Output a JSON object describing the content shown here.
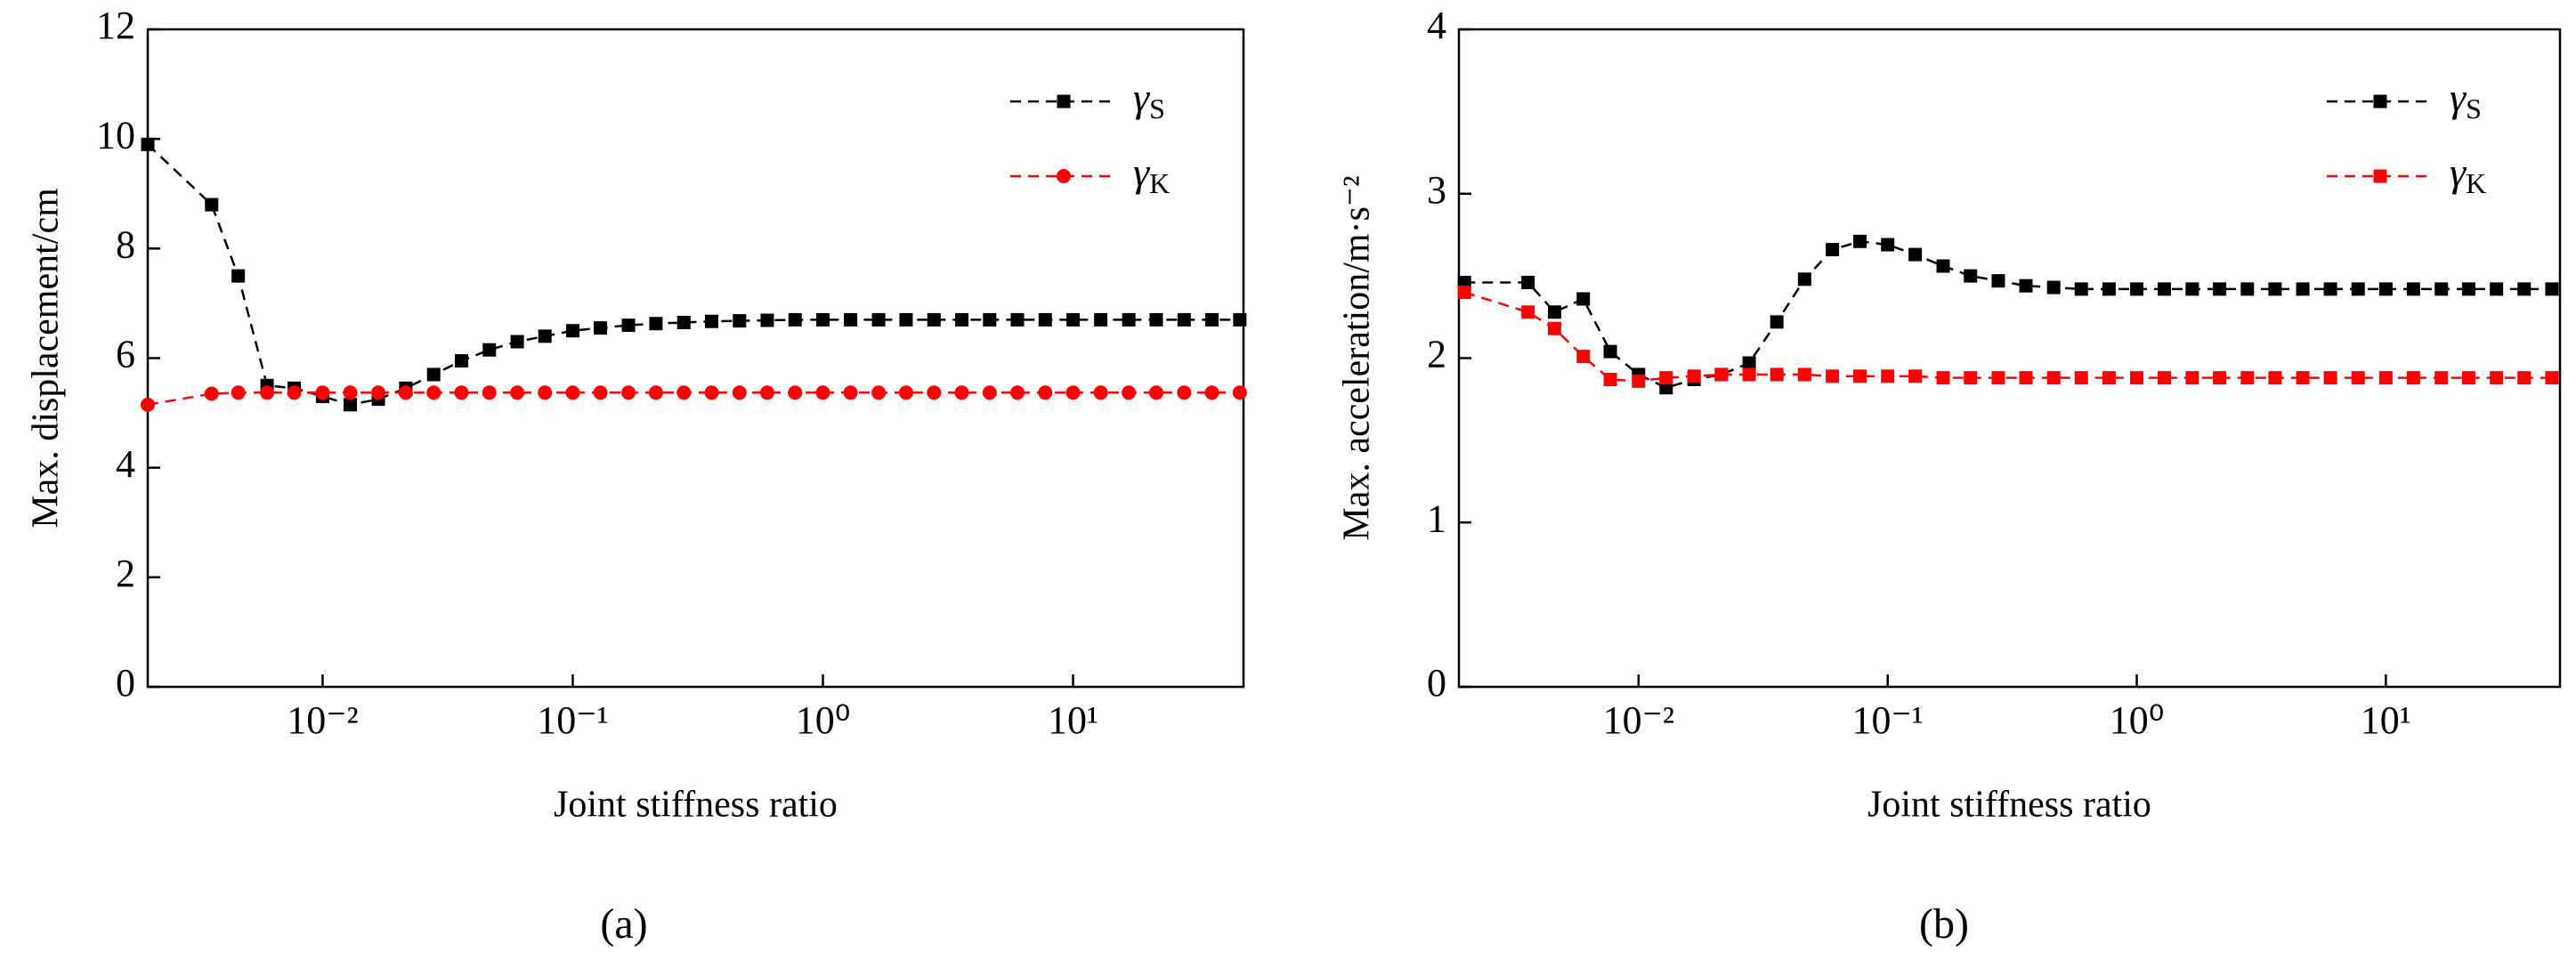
{
  "chart_data": [
    {
      "type": "line",
      "panel_label": "(a)",
      "xlabel": "Joint stiffness ratio",
      "ylabel": "Max. displacement/cm",
      "x": [
        0.002,
        0.0036,
        0.0046,
        0.006,
        0.0077,
        0.01,
        0.0129,
        0.0167,
        0.0215,
        0.0278,
        0.0359,
        0.0464,
        0.06,
        0.0774,
        0.1,
        0.129,
        0.167,
        0.215,
        0.278,
        0.359,
        0.464,
        0.599,
        0.774,
        1,
        1.29,
        1.67,
        2.15,
        2.78,
        3.59,
        4.64,
        5.99,
        7.74,
        10,
        12.9,
        16.7,
        21.5,
        27.8,
        35.9,
        46.4
      ],
      "xscale": "log",
      "xlim": [
        0.002,
        48
      ],
      "xticks": [
        {
          "value": 0.01,
          "label": "10⁻²"
        },
        {
          "value": 0.1,
          "label": "10⁻¹"
        },
        {
          "value": 1,
          "label": "10⁰"
        },
        {
          "value": 10,
          "label": "10¹"
        }
      ],
      "ylim": [
        0,
        12
      ],
      "yticks": [
        0,
        2,
        4,
        6,
        8,
        10,
        12
      ],
      "legend": "upper right",
      "series": [
        {
          "name": "γS",
          "color": "#000000",
          "marker": "square",
          "values": [
            9.9,
            8.8,
            7.5,
            5.5,
            5.45,
            5.3,
            5.15,
            5.25,
            5.45,
            5.7,
            5.95,
            6.15,
            6.3,
            6.4,
            6.5,
            6.55,
            6.6,
            6.63,
            6.65,
            6.67,
            6.68,
            6.69,
            6.7,
            6.7,
            6.7,
            6.7,
            6.7,
            6.7,
            6.7,
            6.7,
            6.7,
            6.7,
            6.7,
            6.7,
            6.7,
            6.7,
            6.7,
            6.7,
            6.7
          ]
        },
        {
          "name": "γK",
          "color": "#ff0000",
          "marker": "circle",
          "values": [
            5.15,
            5.35,
            5.37,
            5.37,
            5.37,
            5.37,
            5.37,
            5.37,
            5.37,
            5.37,
            5.37,
            5.37,
            5.37,
            5.37,
            5.37,
            5.37,
            5.37,
            5.37,
            5.37,
            5.37,
            5.37,
            5.37,
            5.37,
            5.37,
            5.37,
            5.37,
            5.37,
            5.37,
            5.37,
            5.37,
            5.37,
            5.37,
            5.37,
            5.37,
            5.37,
            5.37,
            5.37,
            5.37,
            5.37
          ]
        }
      ]
    },
    {
      "type": "line",
      "panel_label": "(b)",
      "xlabel": "Joint stiffness ratio",
      "ylabel": "Max. acceleration/m·s⁻²",
      "x": [
        0.002,
        0.0036,
        0.0046,
        0.006,
        0.0077,
        0.01,
        0.0129,
        0.0167,
        0.0215,
        0.0278,
        0.0359,
        0.0464,
        0.06,
        0.0774,
        0.1,
        0.129,
        0.167,
        0.215,
        0.278,
        0.359,
        0.464,
        0.599,
        0.774,
        1,
        1.29,
        1.67,
        2.15,
        2.78,
        3.59,
        4.64,
        5.99,
        7.74,
        10,
        12.9,
        16.7,
        21.5,
        27.8,
        35.9,
        46.4
      ],
      "xscale": "log",
      "xlim": [
        0.0019,
        50
      ],
      "xticks": [
        {
          "value": 0.01,
          "label": "10⁻²"
        },
        {
          "value": 0.1,
          "label": "10⁻¹"
        },
        {
          "value": 1,
          "label": "10⁰"
        },
        {
          "value": 10,
          "label": "10¹"
        }
      ],
      "ylim": [
        0,
        4
      ],
      "yticks": [
        0,
        1,
        2,
        3,
        4
      ],
      "legend": "upper right",
      "series": [
        {
          "name": "γS",
          "color": "#000000",
          "marker": "square",
          "values": [
            2.46,
            2.46,
            2.28,
            2.36,
            2.04,
            1.9,
            1.82,
            1.87,
            1.9,
            1.97,
            2.22,
            2.48,
            2.66,
            2.71,
            2.69,
            2.63,
            2.56,
            2.5,
            2.47,
            2.44,
            2.43,
            2.42,
            2.42,
            2.42,
            2.42,
            2.42,
            2.42,
            2.42,
            2.42,
            2.42,
            2.42,
            2.42,
            2.42,
            2.42,
            2.42,
            2.42,
            2.42,
            2.42,
            2.42
          ]
        },
        {
          "name": "γK",
          "color": "#ff0000",
          "marker": "square",
          "values": [
            2.4,
            2.28,
            2.18,
            2.01,
            1.87,
            1.86,
            1.88,
            1.89,
            1.9,
            1.9,
            1.9,
            1.9,
            1.89,
            1.89,
            1.89,
            1.89,
            1.88,
            1.88,
            1.88,
            1.88,
            1.88,
            1.88,
            1.88,
            1.88,
            1.88,
            1.88,
            1.88,
            1.88,
            1.88,
            1.88,
            1.88,
            1.88,
            1.88,
            1.88,
            1.88,
            1.88,
            1.88,
            1.88,
            1.88
          ]
        }
      ]
    }
  ]
}
